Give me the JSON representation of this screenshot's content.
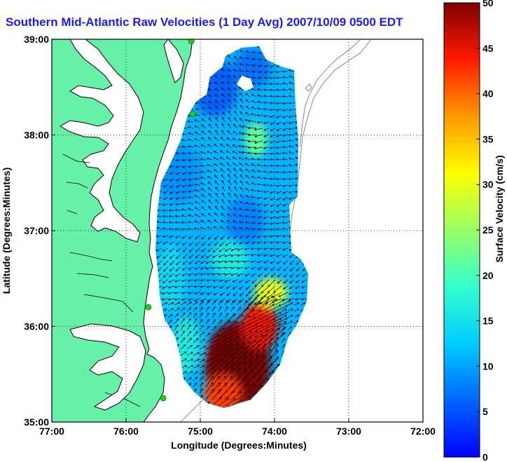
{
  "title": "Southern Mid-Atlantic Raw Velocities (1 Day Avg) 2007/10/09 0500 EDT",
  "colors": {
    "land": "#66f0a8",
    "coastline": "#000000",
    "title_color": "#1a1aff",
    "bathymetry": "#9a9a9a",
    "station": "#22cc22"
  },
  "chart_data": {
    "type": "heatmap",
    "map": {
      "xlabel": "Longitude (Degrees:Minutes)",
      "ylabel": "Latitude (Degrees:Minutes)",
      "xlim": [
        -77.0,
        -72.0
      ],
      "ylim": [
        35.0,
        39.0
      ],
      "x_ticks": [
        {
          "value": -77.0,
          "label": "77:00"
        },
        {
          "value": -76.0,
          "label": "76:00"
        },
        {
          "value": -75.0,
          "label": "75:00"
        },
        {
          "value": -74.0,
          "label": "74:00"
        },
        {
          "value": -73.0,
          "label": "73:00"
        },
        {
          "value": -72.0,
          "label": "72:00"
        }
      ],
      "y_ticks": [
        {
          "value": 35.0,
          "label": "35:00"
        },
        {
          "value": 36.0,
          "label": "36:00"
        },
        {
          "value": 37.0,
          "label": "37:00"
        },
        {
          "value": 38.0,
          "label": "38:00"
        },
        {
          "value": 39.0,
          "label": "39:00"
        }
      ],
      "grid": true
    },
    "colorbar": {
      "label": "Surface Velocity (cm/s)",
      "min": 0,
      "max": 50,
      "ticks": [
        {
          "value": 0,
          "label": "0"
        },
        {
          "value": 5,
          "label": "5"
        },
        {
          "value": 10,
          "label": "10"
        },
        {
          "value": 15,
          "label": "15"
        },
        {
          "value": 20,
          "label": "20"
        },
        {
          "value": 25,
          "label": "25"
        },
        {
          "value": 30,
          "label": "30"
        },
        {
          "value": 35,
          "label": "35"
        },
        {
          "value": 40,
          "label": "40"
        },
        {
          "value": 45,
          "label": "45"
        },
        {
          "value": 50,
          "label": "50"
        }
      ],
      "colormap": "jet"
    },
    "stations": [
      {
        "lon": -75.12,
        "lat": 38.98
      },
      {
        "lon": -75.1,
        "lat": 38.22
      },
      {
        "lon": -75.7,
        "lat": 36.2
      },
      {
        "lon": -75.5,
        "lat": 35.25
      }
    ],
    "speed_features": [
      {
        "lon": -74.5,
        "lat": 35.6,
        "speed": 50,
        "sx": 0.45,
        "sy": 0.45
      },
      {
        "lon": -74.2,
        "lat": 36.0,
        "speed": 44,
        "sx": 0.25,
        "sy": 0.25
      },
      {
        "lon": -74.7,
        "lat": 35.3,
        "speed": 42,
        "sx": 0.25,
        "sy": 0.2
      },
      {
        "lon": -74.05,
        "lat": 36.35,
        "speed": 30,
        "sx": 0.22,
        "sy": 0.15
      },
      {
        "lon": -74.25,
        "lat": 37.95,
        "speed": 22,
        "sx": 0.15,
        "sy": 0.18
      },
      {
        "lon": -74.6,
        "lat": 36.7,
        "speed": 16,
        "sx": 0.25,
        "sy": 0.2
      },
      {
        "lon": -75.2,
        "lat": 35.8,
        "speed": 16,
        "sx": 0.2,
        "sy": 0.3
      },
      {
        "lon": -75.4,
        "lat": 36.5,
        "speed": 14,
        "sx": 0.2,
        "sy": 0.35
      },
      {
        "lon": -75.3,
        "lat": 37.6,
        "speed": 9,
        "sx": 0.3,
        "sy": 0.3
      },
      {
        "lon": -74.4,
        "lat": 37.1,
        "speed": 8,
        "sx": 0.25,
        "sy": 0.25
      },
      {
        "lon": -74.8,
        "lat": 38.5,
        "speed": 6,
        "sx": 0.3,
        "sy": 0.3
      },
      {
        "lon": -74.3,
        "lat": 38.7,
        "speed": 7,
        "sx": 0.25,
        "sy": 0.2
      }
    ],
    "background_speed": 11
  }
}
